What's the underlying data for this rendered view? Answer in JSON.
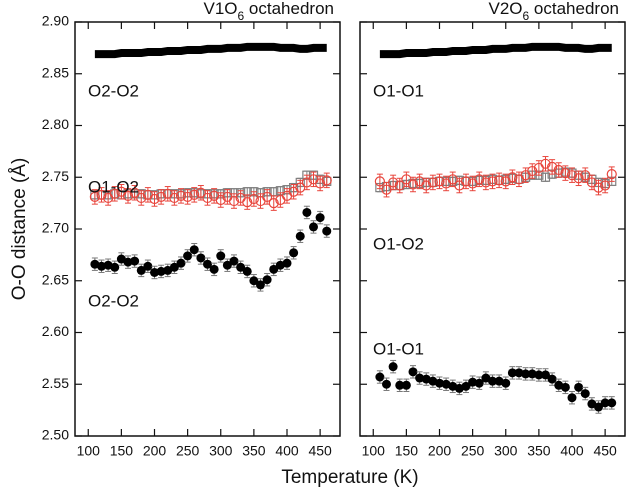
{
  "chart_data": [
    {
      "type": "scatter",
      "title_parts": [
        "V1O",
        "6",
        " octahedron"
      ],
      "ylabel": "O-O distance (Å)",
      "xlabel": "Temperature (K)",
      "xlim": [
        80,
        480
      ],
      "xticks": [
        100,
        150,
        200,
        250,
        300,
        350,
        400,
        450
      ],
      "ylim": [
        2.5,
        2.9
      ],
      "yticks": [
        {
          "value": 2.5,
          "label": "2.50"
        },
        {
          "value": 2.55,
          "label": "2.55"
        },
        {
          "value": 2.6,
          "label": "2.60"
        },
        {
          "value": 2.65,
          "label": "2.65"
        },
        {
          "value": 2.7,
          "label": "2.70"
        },
        {
          "value": 2.75,
          "label": "2.75"
        },
        {
          "value": 2.8,
          "label": "2.80"
        },
        {
          "value": 2.85,
          "label": "2.85"
        },
        {
          "value": 2.9,
          "label": "2.90"
        }
      ],
      "show_ytick_labels": true,
      "annotations": [
        "O2-O2",
        "O1-O2",
        "O2-O2"
      ],
      "x": [
        110,
        120,
        130,
        140,
        150,
        160,
        170,
        180,
        190,
        200,
        210,
        220,
        230,
        240,
        250,
        260,
        270,
        280,
        290,
        300,
        310,
        320,
        330,
        340,
        350,
        360,
        370,
        380,
        390,
        400,
        410,
        420,
        430,
        440,
        450,
        460
      ],
      "series": [
        {
          "marker": "square-open",
          "color": "#808080",
          "values": [
            2.733,
            2.733,
            2.733,
            2.734,
            2.733,
            2.734,
            2.734,
            2.734,
            2.733,
            2.733,
            2.734,
            2.734,
            2.734,
            2.734,
            2.735,
            2.735,
            2.734,
            2.734,
            2.734,
            2.734,
            2.735,
            2.735,
            2.735,
            2.736,
            2.736,
            2.735,
            2.736,
            2.736,
            2.737,
            2.738,
            2.74,
            2.745,
            2.752,
            2.752,
            2.748,
            2.746
          ],
          "errors": [
            0.004,
            0.004,
            0.004,
            0.004,
            0.004,
            0.004,
            0.004,
            0.004,
            0.004,
            0.004,
            0.004,
            0.004,
            0.004,
            0.004,
            0.004,
            0.004,
            0.004,
            0.004,
            0.004,
            0.004,
            0.004,
            0.004,
            0.004,
            0.004,
            0.004,
            0.004,
            0.004,
            0.004,
            0.004,
            0.004,
            0.004,
            0.004,
            0.004,
            0.004,
            0.004,
            0.004
          ]
        },
        {
          "marker": "circle-open",
          "color": "#e8453c",
          "values": [
            2.731,
            2.733,
            2.73,
            2.734,
            2.736,
            2.732,
            2.735,
            2.73,
            2.733,
            2.729,
            2.731,
            2.734,
            2.73,
            2.732,
            2.731,
            2.733,
            2.735,
            2.73,
            2.732,
            2.728,
            2.731,
            2.727,
            2.73,
            2.726,
            2.729,
            2.727,
            2.731,
            2.725,
            2.728,
            2.732,
            2.736,
            2.74,
            2.745,
            2.748,
            2.744,
            2.747
          ],
          "errors": [
            0.007,
            0.007,
            0.007,
            0.007,
            0.007,
            0.007,
            0.007,
            0.007,
            0.007,
            0.007,
            0.007,
            0.007,
            0.007,
            0.007,
            0.007,
            0.007,
            0.007,
            0.007,
            0.007,
            0.007,
            0.007,
            0.007,
            0.007,
            0.007,
            0.007,
            0.007,
            0.007,
            0.007,
            0.007,
            0.007,
            0.007,
            0.007,
            0.007,
            0.007,
            0.007,
            0.007
          ]
        },
        {
          "marker": "circle-filled",
          "color": "#000000",
          "values": [
            2.666,
            2.664,
            2.665,
            2.663,
            2.671,
            2.668,
            2.669,
            2.66,
            2.664,
            2.658,
            2.659,
            2.66,
            2.663,
            2.667,
            2.674,
            2.68,
            2.672,
            2.666,
            2.661,
            2.674,
            2.665,
            2.669,
            2.663,
            2.659,
            2.65,
            2.646,
            2.651,
            2.661,
            2.665,
            2.667,
            2.677,
            2.693,
            2.716,
            2.702,
            2.711,
            2.698
          ],
          "errors": [
            0.006,
            0.006,
            0.006,
            0.006,
            0.006,
            0.006,
            0.006,
            0.006,
            0.006,
            0.006,
            0.006,
            0.006,
            0.006,
            0.006,
            0.006,
            0.006,
            0.006,
            0.006,
            0.006,
            0.006,
            0.006,
            0.006,
            0.006,
            0.006,
            0.006,
            0.006,
            0.006,
            0.006,
            0.006,
            0.006,
            0.006,
            0.006,
            0.006,
            0.006,
            0.006,
            0.006
          ]
        },
        {
          "marker": "thick-line",
          "color": "#000000",
          "values": [
            2.869,
            2.869,
            2.869,
            2.869,
            2.87,
            2.87,
            2.87,
            2.87,
            2.871,
            2.871,
            2.871,
            2.872,
            2.872,
            2.872,
            2.873,
            2.873,
            2.873,
            2.874,
            2.874,
            2.874,
            2.875,
            2.875,
            2.875,
            2.876,
            2.876,
            2.876,
            2.876,
            2.876,
            2.875,
            2.875,
            2.875,
            2.874,
            2.874,
            2.875,
            2.875,
            2.875
          ]
        }
      ]
    },
    {
      "type": "scatter",
      "title_parts": [
        "V2O",
        "6",
        " octahedron"
      ],
      "xlim": [
        80,
        480
      ],
      "xticks": [
        100,
        150,
        200,
        250,
        300,
        350,
        400,
        450
      ],
      "ylim": [
        2.5,
        2.9
      ],
      "yticks": [
        2.5,
        2.55,
        2.6,
        2.65,
        2.7,
        2.75,
        2.8,
        2.85,
        2.9
      ],
      "show_ytick_labels": false,
      "annotations": [
        "O1-O1",
        "O1-O2",
        "O1-O1"
      ],
      "x": [
        110,
        120,
        130,
        140,
        150,
        160,
        170,
        180,
        190,
        200,
        210,
        220,
        230,
        240,
        250,
        260,
        270,
        280,
        290,
        300,
        310,
        320,
        330,
        340,
        350,
        360,
        370,
        380,
        390,
        400,
        410,
        420,
        430,
        440,
        450,
        460
      ],
      "series": [
        {
          "marker": "square-open",
          "color": "#808080",
          "values": [
            2.74,
            2.741,
            2.742,
            2.742,
            2.743,
            2.744,
            2.744,
            2.745,
            2.745,
            2.746,
            2.746,
            2.746,
            2.747,
            2.746,
            2.746,
            2.747,
            2.747,
            2.748,
            2.747,
            2.748,
            2.749,
            2.748,
            2.75,
            2.752,
            2.752,
            2.75,
            2.753,
            2.754,
            2.755,
            2.754,
            2.752,
            2.75,
            2.748,
            2.745,
            2.744,
            2.746
          ],
          "errors": [
            0.004,
            0.004,
            0.004,
            0.004,
            0.004,
            0.004,
            0.004,
            0.004,
            0.004,
            0.004,
            0.004,
            0.004,
            0.004,
            0.004,
            0.004,
            0.004,
            0.004,
            0.004,
            0.004,
            0.004,
            0.004,
            0.004,
            0.004,
            0.004,
            0.004,
            0.004,
            0.004,
            0.004,
            0.004,
            0.004,
            0.004,
            0.004,
            0.004,
            0.004,
            0.004,
            0.004
          ]
        },
        {
          "marker": "circle-open",
          "color": "#e8453c",
          "values": [
            2.746,
            2.738,
            2.745,
            2.742,
            2.748,
            2.743,
            2.746,
            2.742,
            2.745,
            2.746,
            2.744,
            2.748,
            2.742,
            2.746,
            2.744,
            2.748,
            2.745,
            2.746,
            2.747,
            2.746,
            2.75,
            2.748,
            2.752,
            2.756,
            2.759,
            2.763,
            2.76,
            2.757,
            2.754,
            2.752,
            2.749,
            2.752,
            2.745,
            2.74,
            2.742,
            2.753
          ],
          "errors": [
            0.007,
            0.007,
            0.007,
            0.007,
            0.007,
            0.007,
            0.007,
            0.007,
            0.007,
            0.007,
            0.007,
            0.007,
            0.007,
            0.007,
            0.007,
            0.007,
            0.007,
            0.007,
            0.007,
            0.007,
            0.007,
            0.007,
            0.007,
            0.007,
            0.007,
            0.007,
            0.007,
            0.007,
            0.007,
            0.007,
            0.007,
            0.007,
            0.007,
            0.007,
            0.007,
            0.007
          ]
        },
        {
          "marker": "circle-filled",
          "color": "#000000",
          "values": [
            2.557,
            2.55,
            2.567,
            2.549,
            2.549,
            2.562,
            2.556,
            2.555,
            2.553,
            2.551,
            2.55,
            2.548,
            2.546,
            2.548,
            2.552,
            2.551,
            2.556,
            2.553,
            2.553,
            2.551,
            2.561,
            2.561,
            2.56,
            2.56,
            2.559,
            2.559,
            2.555,
            2.549,
            2.547,
            2.537,
            2.547,
            2.541,
            2.531,
            2.528,
            2.532,
            2.532
          ],
          "errors": [
            0.006,
            0.006,
            0.006,
            0.006,
            0.006,
            0.006,
            0.006,
            0.006,
            0.006,
            0.006,
            0.006,
            0.006,
            0.006,
            0.006,
            0.006,
            0.006,
            0.006,
            0.006,
            0.006,
            0.006,
            0.006,
            0.006,
            0.006,
            0.006,
            0.006,
            0.006,
            0.006,
            0.006,
            0.006,
            0.006,
            0.006,
            0.006,
            0.006,
            0.006,
            0.006,
            0.006
          ]
        },
        {
          "marker": "thick-line",
          "color": "#000000",
          "values": [
            2.869,
            2.869,
            2.869,
            2.869,
            2.87,
            2.87,
            2.87,
            2.87,
            2.871,
            2.871,
            2.871,
            2.872,
            2.872,
            2.872,
            2.873,
            2.873,
            2.873,
            2.874,
            2.874,
            2.874,
            2.875,
            2.875,
            2.875,
            2.876,
            2.876,
            2.876,
            2.876,
            2.876,
            2.875,
            2.875,
            2.875,
            2.874,
            2.874,
            2.875,
            2.875,
            2.875
          ]
        }
      ]
    }
  ]
}
